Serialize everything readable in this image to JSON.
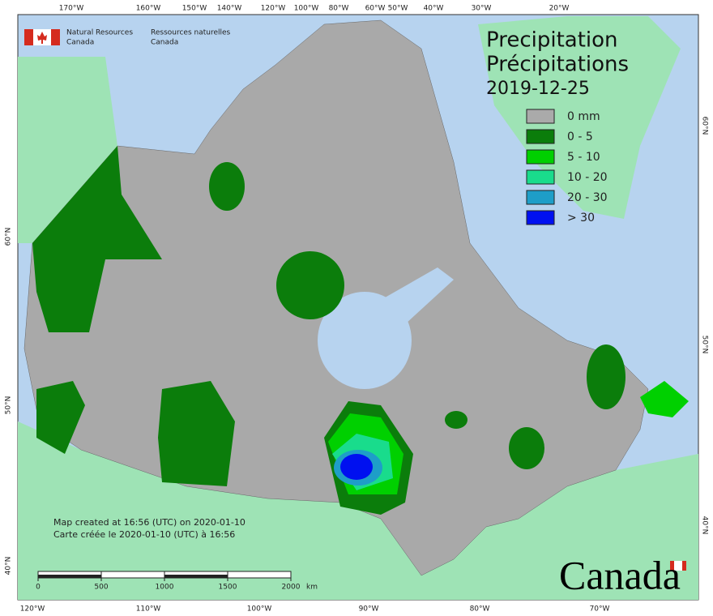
{
  "header": {
    "department_en": [
      "Natural Resources",
      "Canada"
    ],
    "department_fr": [
      "Ressources naturelles",
      "Canada"
    ]
  },
  "title": {
    "en": "Precipitation",
    "fr": "Précipitations",
    "date": "2019-12-25"
  },
  "legend": {
    "items": [
      {
        "label": "0 mm",
        "color": "#aaaaaa"
      },
      {
        "label": "0 - 5",
        "color": "#0b7d0b"
      },
      {
        "label": "5 - 10",
        "color": "#00d000"
      },
      {
        "label": "10 - 20",
        "color": "#19dc8c"
      },
      {
        "label": "20 - 30",
        "color": "#1e9ec8"
      },
      {
        "label": "> 30",
        "color": "#0010f0"
      }
    ]
  },
  "graticule": {
    "top": [
      "170°W",
      "160°W",
      "150°W",
      "140°W",
      "120°W",
      "100°W",
      "80°W",
      "60°W",
      "50°W",
      "40°W",
      "30°W",
      "20°W"
    ],
    "bottom": [
      "120°W",
      "110°W",
      "100°W",
      "90°W",
      "80°W",
      "70°W"
    ],
    "left": [
      "60°N",
      "50°N",
      "40°N"
    ],
    "right": [
      "60°N",
      "50°N",
      "40°N"
    ]
  },
  "credits": [
    "Map created at 16:56 (UTC) on 2020-01-10",
    "Carte créée le 2020-01-10 (UTC) à 16:56"
  ],
  "scale_bar": {
    "ticks": [
      0,
      500,
      1000,
      1500,
      2000
    ],
    "unit": "km"
  },
  "wordmark": "Canada"
}
